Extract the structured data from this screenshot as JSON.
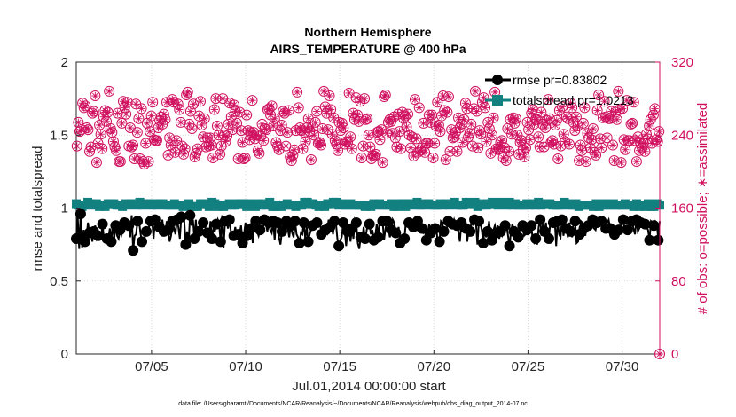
{
  "chart_data": {
    "type": "line",
    "title": [
      "Northern Hemisphere",
      "AIRS_TEMPERATURE @ 400 hPa"
    ],
    "xlabel": "Jul.01,2014 00:00:00 start",
    "ylabel_left": "rmse and totalspread",
    "ylabel_right": "# of obs: o=possible; ∗=assimilated",
    "x_range_days": [
      1,
      32
    ],
    "ylim_left": [
      0,
      2
    ],
    "ylim_right": [
      0,
      320
    ],
    "x_ticks": [
      {
        "day": 5,
        "label": "07/05"
      },
      {
        "day": 10,
        "label": "07/10"
      },
      {
        "day": 15,
        "label": "07/15"
      },
      {
        "day": 20,
        "label": "07/20"
      },
      {
        "day": 25,
        "label": "07/25"
      },
      {
        "day": 30,
        "label": "07/30"
      }
    ],
    "y_ticks_left": [
      "0",
      "0.5",
      "1",
      "1.5",
      "2"
    ],
    "y_ticks_right": [
      "0",
      "80",
      "160",
      "240",
      "320"
    ],
    "grid": true,
    "legend": {
      "position": "top-right",
      "entries": [
        "rmse pr=0.83802",
        "totalspread pr=1.0213"
      ]
    },
    "colors": {
      "rmse": "#000000",
      "totalspread": "#138080",
      "obs": "#d0105f"
    },
    "rmse_values": [
      0.79,
      0.94,
      0.72,
      0.96,
      0.73,
      0.85,
      0.77,
      0.8,
      0.9,
      0.83,
      0.84,
      0.77,
      0.84,
      0.88,
      0.79,
      0.81,
      0.83,
      0.79,
      0.89,
      0.78,
      0.79,
      0.79,
      0.79,
      0.86,
      0.77,
      0.9,
      0.79,
      0.88,
      0.81,
      0.79,
      0.85,
      0.82,
      0.87,
      0.9,
      0.91,
      0.86,
      0.88,
      0.8,
      0.95,
      0.71,
      0.81,
      0.82,
      0.91,
      0.92,
      0.83,
      0.77,
      0.79,
      0.8,
      0.84,
      0.81,
      0.88,
      0.91,
      0.91,
      0.79,
      0.92,
      0.92,
      0.91,
      0.87,
      0.82,
      0.92,
      0.84,
      0.81,
      0.91,
      0.85,
      0.77,
      0.81,
      0.91,
      0.86,
      0.82,
      0.92,
      0.87,
      0.79,
      0.94,
      0.91,
      0.92,
      0.75,
      0.84,
      0.76,
      0.95,
      0.88,
      0.92,
      0.79,
      0.92,
      0.77,
      0.84,
      0.92,
      0.91,
      0.9,
      0.91,
      0.82,
      0.83,
      0.79,
      0.91,
      0.79,
      0.86,
      0.84,
      0.89,
      0.92,
      0.88,
      0.77,
      0.95,
      0.73,
      0.91,
      0.92,
      0.86,
      0.92,
      0.84,
      0.8,
      0.81,
      0.87,
      0.8,
      0.82,
      0.83,
      0.88,
      0.76,
      0.82,
      0.9,
      0.81,
      0.83,
      0.84,
      0.86,
      0.76,
      0.91,
      0.91,
      0.84,
      0.81,
      0.85,
      0.85,
      0.86,
      0.92,
      0.89,
      0.84,
      0.9,
      0.85,
      0.83,
      0.91,
      0.78,
      0.93,
      0.9,
      0.8,
      0.75,
      0.84,
      0.9,
      0.86,
      0.91,
      0.86,
      0.8,
      0.88,
      0.83,
      0.8,
      0.91,
      0.82,
      0.8,
      0.76,
      0.83,
      0.82,
      0.9,
      0.79,
      0.87,
      0.77,
      0.82,
      0.85,
      0.88,
      0.87,
      0.92,
      0.9,
      0.88,
      0.92,
      0.82,
      0.88,
      0.82,
      0.85,
      0.83,
      0.92,
      0.87,
      0.91,
      0.82,
      0.91,
      0.9,
      0.79,
      0.74,
      0.78,
      0.8,
      0.9,
      0.85,
      0.74,
      0.84,
      0.88,
      0.77,
      0.86,
      0.79,
      0.92,
      0.9,
      0.76,
      0.72,
      0.8,
      0.78,
      0.87,
      0.79,
      0.84,
      0.9,
      0.89,
      0.82,
      0.85,
      0.78,
      0.81,
      0.89,
      0.8,
      0.92,
      0.91,
      0.91,
      0.78,
      0.86,
      0.91,
      0.86,
      0.8,
      0.85,
      0.92,
      0.9,
      0.83,
      0.84,
      0.87,
      0.76,
      0.8,
      0.74,
      0.79,
      0.91,
      0.88,
      0.9,
      0.92,
      0.85,
      0.87,
      0.91,
      0.9,
      0.91,
      0.84,
      0.89,
      0.86,
      0.83,
      0.84,
      0.78,
      0.84,
      0.89,
      0.83,
      0.82,
      0.83,
      0.86,
      0.85,
      0.74,
      0.77,
      0.91,
      0.9,
      0.84,
      0.82,
      0.86,
      0.91,
      0.89,
      0.89,
      0.89,
      0.92,
      0.88,
      0.88,
      0.84,
      0.77,
      0.9,
      0.89,
      0.87,
      0.86,
      0.77,
      0.85,
      0.84,
      0.92,
      0.88,
      0.92,
      0.9,
      0.75,
      0.91,
      0.9,
      0.85,
      0.76,
      0.86,
      0.8,
      0.84,
      0.91,
      0.81,
      0.78,
      0.85,
      0.88,
      0.83,
      0.88,
      0.79,
      0.84,
      0.81,
      0.83,
      0.88,
      0.88,
      0.81,
      0.74,
      0.84,
      0.89,
      0.84,
      0.86,
      0.79,
      0.8,
      0.85,
      0.9,
      0.88,
      0.81,
      0.82,
      0.85,
      0.84,
      0.87,
      0.88,
      0.77,
      0.76,
      0.79,
      0.75,
      0.87,
      0.92,
      0.81,
      0.9,
      0.84,
      0.9,
      0.76,
      0.79,
      0.91,
      0.92,
      0.9,
      0.92,
      0.74,
      0.91,
      0.82,
      0.8,
      0.92,
      0.81,
      0.87,
      0.86,
      0.8,
      0.9,
      0.84,
      0.8,
      0.91,
      0.91,
      0.76,
      0.77,
      0.82,
      0.91,
      0.9,
      0.86,
      0.81,
      0.88,
      0.88,
      0.87,
      0.89,
      0.92,
      0.86,
      0.85,
      0.9,
      0.89,
      0.88,
      0.91,
      0.85,
      0.84,
      0.86,
      0.9,
      0.92,
      0.86,
      0.8,
      0.86,
      0.82,
      0.83,
      0.84,
      0.85,
      0.87,
      0.91,
      0.92,
      0.85,
      0.87,
      0.85,
      0.88,
      0.86,
      0.91,
      0.86,
      0.82,
      0.92,
      0.84,
      0.86,
      0.9,
      0.91,
      0.9,
      0.89,
      0.87,
      0.85,
      0.78,
      0.91,
      0.9,
      0.88,
      0.91,
      0.9,
      0.78,
      0.91
    ],
    "totalspread_values": [
      1.03,
      1.02,
      1.02,
      1.01,
      1.01,
      1.03,
      1.02,
      1.04,
      1.04,
      1.03,
      1.03,
      1.02,
      1.02,
      1.04,
      1.03,
      1.02,
      1.01,
      1.02,
      1.02,
      1.02,
      1.01,
      1.01,
      1.03,
      1.01,
      1.03,
      1.02,
      1.03,
      1.02,
      1.02,
      1.01,
      1.02,
      1.03,
      1.01,
      1.02,
      1.03,
      1.03,
      1.02,
      1.04,
      1.03,
      1.02,
      1.03,
      1.03,
      1.02,
      1.04,
      1.04,
      1.03,
      1.02,
      1.03,
      1.03,
      1.02,
      1.03,
      1.02,
      1.02,
      1.02,
      1.03,
      1.04,
      1.02,
      1.02,
      1.03,
      1.01,
      1.03,
      1.01,
      1.02,
      1.03,
      1.02,
      1.02,
      1.02,
      1.02,
      1.03,
      1.02,
      1.02,
      1.02,
      1.02,
      1.03,
      1.01,
      1.03,
      1.02,
      1.03,
      1.03,
      1.02,
      1.01,
      1.03,
      1.01,
      1.02,
      1.01,
      1.02,
      1.03,
      1.02,
      1.03,
      1.02,
      1.03,
      1.01,
      1.01,
      1.02,
      1.04,
      1.03,
      1.03,
      1.04,
      1.01,
      1.03,
      1.02,
      1.02,
      1.01,
      1.03,
      1.02,
      1.02,
      1.03,
      1.04,
      1.02,
      1.02,
      1.02,
      1.04,
      1.03,
      1.03,
      1.03,
      1.03,
      1.03,
      1.02,
      1.01,
      1.02,
      1.03,
      1.01,
      1.02,
      1.03,
      1.01,
      1.02,
      1.03,
      1.02,
      1.02,
      1.01,
      1.03,
      1.03,
      1.02,
      1.02,
      1.04,
      1.02,
      1.01,
      1.02,
      1.01,
      1.02,
      1.02,
      1.04,
      1.01,
      1.02,
      1.02,
      1.02,
      1.03,
      1.01,
      1.02,
      1.04,
      1.02,
      1.03,
      1.01,
      1.02,
      1.02,
      1.02,
      1.02,
      1.03,
      1.04,
      1.02,
      1.04,
      1.04,
      1.03,
      1.04,
      1.03,
      1.02,
      1.02,
      1.03,
      1.01,
      1.03,
      1.02,
      1.03,
      1.01,
      1.02,
      1.03,
      1.03,
      1.03,
      1.03,
      1.04,
      1.03,
      1.04,
      1.03,
      1.02,
      1.02,
      1.03,
      1.01,
      1.02,
      1.03,
      1.02,
      1.02,
      1.03,
      1.03,
      1.02,
      1.02,
      1.02,
      1.04,
      1.02,
      1.02,
      1.02,
      1.01,
      1.01,
      1.03,
      1.02,
      1.02,
      1.01,
      1.03,
      1.03,
      1.02,
      1.02,
      1.02,
      1.03,
      1.02,
      1.02,
      1.03,
      1.02,
      1.02,
      1.02,
      1.03,
      1.03,
      1.04,
      1.01,
      1.03,
      1.01,
      1.02,
      1.03,
      1.02,
      1.03,
      1.02,
      1.01,
      1.02,
      1.03,
      1.01,
      1.03,
      1.04,
      1.02,
      1.01,
      1.04,
      1.02,
      1.02,
      1.02,
      1.02,
      1.01,
      1.03,
      1.02,
      1.03,
      1.02,
      1.02,
      1.02,
      1.02,
      1.01,
      1.02,
      1.02,
      1.03,
      1.03,
      1.02,
      1.03,
      1.03,
      1.01,
      1.02,
      1.01,
      1.03,
      1.03,
      1.04,
      1.03,
      1.02,
      1.02,
      1.02,
      1.03,
      1.02,
      1.03,
      1.04,
      1.02,
      1.03,
      1.02,
      1.03,
      1.04,
      1.04,
      1.01,
      1.01,
      1.03,
      1.02,
      1.03,
      1.03,
      1.02,
      1.02,
      1.03,
      1.03,
      1.03,
      1.04,
      1.02,
      1.03,
      1.04,
      1.02,
      1.02,
      1.04,
      1.03,
      1.03,
      1.02,
      1.02,
      1.02,
      1.04,
      1.02,
      1.02,
      1.02,
      1.03,
      1.03,
      1.02,
      1.02,
      1.02,
      1.04,
      1.02,
      1.03,
      1.03,
      1.01,
      1.02,
      1.03,
      1.03,
      1.02,
      1.02,
      1.03,
      1.04,
      1.02,
      1.02,
      1.01,
      1.03,
      1.02,
      1.03,
      1.03,
      1.03,
      1.02,
      1.02,
      1.02,
      1.02,
      1.02,
      1.02,
      1.01,
      1.02,
      1.02,
      1.04,
      1.03,
      1.03,
      1.01,
      1.02,
      1.04,
      1.02,
      1.02,
      1.03,
      1.02,
      1.01,
      1.02,
      1.02,
      1.02,
      1.02,
      1.03,
      1.02,
      1.03,
      1.02,
      1.03,
      1.01,
      1.04,
      1.03,
      1.02,
      1.01,
      1.03,
      1.02,
      1.03,
      1.03,
      1.04,
      1.02,
      1.02,
      1.02,
      1.02,
      1.03,
      1.04,
      1.02,
      1.03,
      1.02,
      1.03,
      1.02,
      1.03,
      1.03,
      1.02,
      1.02,
      1.02,
      1.02,
      1.04,
      1.01,
      1.01,
      1.03,
      1.02,
      1.01,
      1.02,
      1.02,
      1.03,
      1.01,
      1.01,
      1.03,
      1.02,
      1.01,
      1.02,
      1.01,
      1.03,
      1.03,
      1.02,
      1.02
    ],
    "obs_counts": [
      228,
      254,
      244,
      246,
      275,
      270,
      272,
      248,
      246,
      222,
      227,
      264,
      266,
      283,
      210,
      231,
      251,
      241,
      225,
      260,
      267,
      255,
      265,
      288,
      247,
      243,
      233,
      227,
      223,
      264,
      211,
      211,
      253,
      277,
      270,
      263,
      276,
      228,
      248,
      227,
      229,
      214,
      274,
      243,
      258,
      214,
      269,
      211,
      208,
      231,
      253,
      211,
      244,
      261,
      276,
      235,
      234,
      234,
      248,
      256,
      260,
      252,
      263,
      257,
      276,
      218,
      237,
      229,
      279,
      276,
      221,
      234,
      274,
      268,
      254,
      228,
      219,
      225,
      284,
      287,
      252,
      266,
      247,
      274,
      216,
      220,
      225,
      261,
      277,
      251,
      238,
      258,
      227,
      237,
      228,
      237,
      229,
      215,
      268,
      280,
      250,
      240,
      219,
      228,
      280,
      240,
      233,
      239,
      252,
      275,
      260,
      246,
      273,
      266,
      253,
      214,
      265,
      245,
      232,
      214,
      215,
      262,
      245,
      235,
      243,
      278,
      243,
      236,
      240,
      223,
      220,
      239,
      252,
      234,
      247,
      246,
      268,
      269,
      262,
      272,
      250,
      258,
      232,
      228,
      224,
      245,
      251,
      266,
      264,
      228,
      243,
      267,
      216,
      212,
      218,
      224,
      245,
      287,
      270,
      248,
      245,
      225,
      243,
      233,
      248,
      258,
      244,
      213,
      249,
      240,
      254,
      266,
      231,
      232,
      229,
      247,
      288,
      271,
      264,
      246,
      283,
      268,
      241,
      259,
      234,
      230,
      223,
      254,
      245,
      253,
      248,
      230,
      233,
      232,
      286,
      238,
      225,
      264,
      257,
      281,
      262,
      255,
      277,
      215,
      228,
      280,
      257,
      258,
      240,
      227,
      214,
      218,
      217,
      219,
      243,
      244,
      235,
      246,
      210,
      282,
      284,
      242,
      254,
      257,
      255,
      242,
      260,
      237,
      227,
      263,
      244,
      225,
      265,
      258,
      261,
      249,
      263,
      240,
      226,
      238,
      217,
      279,
      236,
      221,
      270,
      223,
      226,
      253,
      221,
      231,
      231,
      262,
      254,
      262,
      215,
      231,
      250,
      276,
      251,
      244,
      261,
      283,
      267,
      213,
      265,
      282,
      222,
      246,
      237,
      238,
      243,
      222,
      259,
      248,
      252,
      232,
      257,
      275,
      269,
      238,
      242,
      252,
      228,
      269,
      288,
      266,
      226,
      245,
      241,
      276,
      281,
      270,
      233,
      254,
      247,
      220,
      240,
      259,
      287,
      225,
      224,
      225,
      232,
      234,
      215,
      226,
      212,
      247,
      222,
      257,
      241,
      259,
      253,
      258,
      240,
      219,
      232,
      234,
      224,
      216,
      226,
      254,
      246,
      235,
      264,
      268,
      252,
      257,
      257,
      238,
      227,
      265,
      252,
      227,
      248,
      256,
      279,
      258,
      232,
      234,
      230,
      251,
      256,
      214,
      267,
      228,
      271,
      241,
      233,
      260,
      258,
      230,
      275,
      270,
      254,
      245,
      260,
      250,
      212,
      229,
      223,
      253,
      270,
      211,
      242,
      237,
      226,
      235,
      247,
      221,
      218,
      267,
      284,
      236,
      226,
      259,
      277,
      260,
      237,
      258,
      258,
      266,
      229,
      212,
      265,
      257,
      288,
      268,
      210,
      269,
      235,
      224,
      278,
      234,
      234,
      252,
      253,
      276,
      234,
      211,
      238,
      223,
      231,
      226,
      231,
      222,
      241,
      236,
      250,
      257,
      231,
      262,
      269,
      235,
      233,
      244
    ],
    "footnote": "data file: /Users/gharamti/Documents/NCAR/Reanalysis/~/Documents/NCAR/Reanalysis/webpub/obs_diag_output_2014-07.nc"
  }
}
